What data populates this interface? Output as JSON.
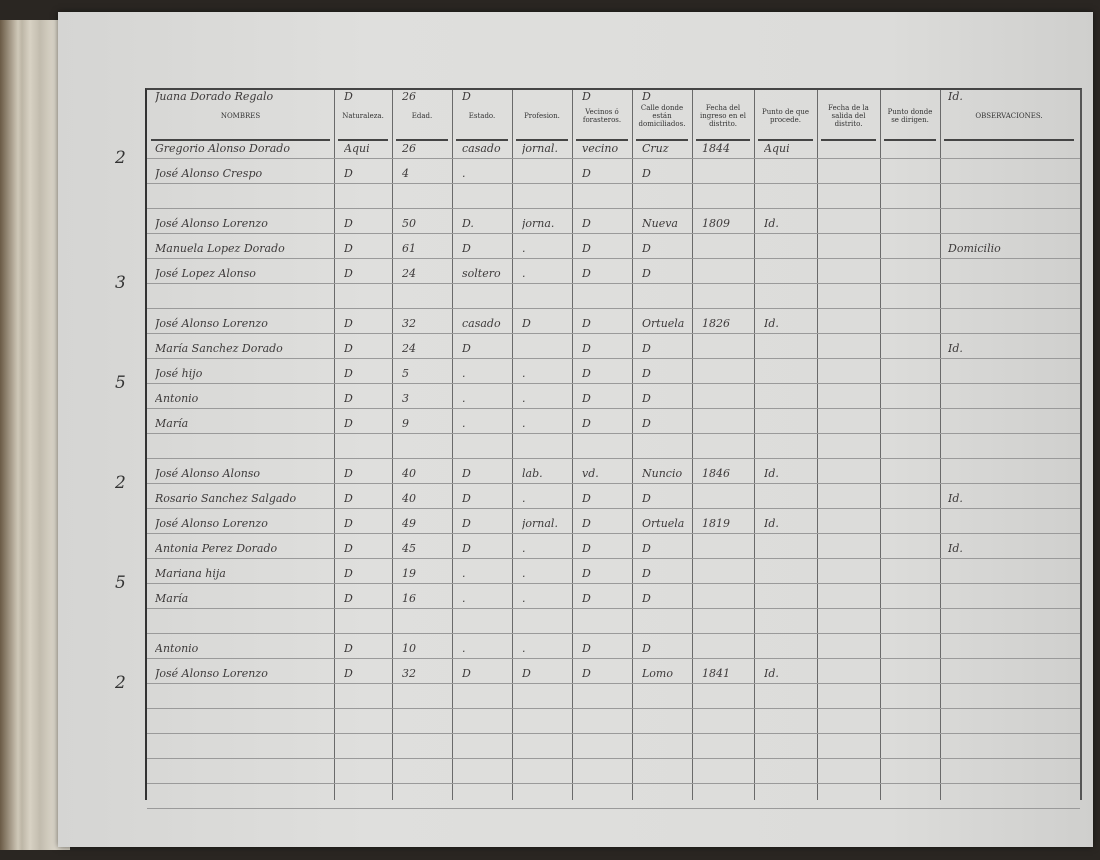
{
  "headers": [
    "NOMBRES",
    "Naturaleza.",
    "Edad.",
    "Estado.",
    "Profesion.",
    "Vecinos ó forasteros.",
    "Calle donde están domiciliados.",
    "Fecha del ingreso en el distrito.",
    "Punto de que procede.",
    "Fecha de la salida del distrito.",
    "Punto donde se dirigen.",
    "OBSERVACIONES."
  ],
  "groups": [
    {
      "row": 0,
      "count": "2"
    },
    {
      "row": 4,
      "count": "3"
    },
    {
      "row": 7,
      "count": "5"
    },
    {
      "row": 10,
      "count": "2"
    },
    {
      "row": 14,
      "count": "5"
    },
    {
      "row": 17,
      "count": "2"
    }
  ],
  "rows": [
    [
      "Gregorio Alonso Dorado",
      "Aqui",
      "26",
      "casado",
      "jornal.",
      "vecino",
      "Cruz",
      "1844",
      "Aqui",
      "",
      "",
      ""
    ],
    [
      "José Alonso Crespo",
      "D",
      "4",
      ".",
      "",
      "D",
      "D",
      "",
      "",
      "",
      "",
      ""
    ],
    [
      "José Alonso Lorenzo",
      "D",
      "50",
      "D.",
      "jorna.",
      "D",
      "Nueva",
      "1809",
      "Id.",
      "",
      "",
      ""
    ],
    [
      "Manuela Lopez Dorado",
      "D",
      "61",
      "D",
      ".",
      "D",
      "D",
      "",
      "",
      "",
      "",
      "Domicilio"
    ],
    [
      "José Lopez Alonso",
      "D",
      "24",
      "soltero",
      ".",
      "D",
      "D",
      "",
      "",
      "",
      "",
      ""
    ],
    [
      "José Alonso Lorenzo",
      "D",
      "32",
      "casado",
      "D",
      "D",
      "Ortuela",
      "1826",
      "Id.",
      "",
      "",
      ""
    ],
    [
      "María Sanchez Dorado",
      "D",
      "24",
      "D",
      "",
      "D",
      "D",
      "",
      "",
      "",
      "",
      "Id."
    ],
    [
      "José hijo",
      "D",
      "5",
      ".",
      ".",
      "D",
      "D",
      "",
      "",
      "",
      "",
      ""
    ],
    [
      "Antonio",
      "D",
      "3",
      ".",
      ".",
      "D",
      "D",
      "",
      "",
      "",
      "",
      ""
    ],
    [
      "María",
      "D",
      "9",
      ".",
      ".",
      "D",
      "D",
      "",
      "",
      "",
      "",
      ""
    ],
    [
      "José Alonso Alonso",
      "D",
      "40",
      "D",
      "lab.",
      "vd.",
      "Nuncio",
      "1846",
      "Id.",
      "",
      "",
      ""
    ],
    [
      "Rosario Sanchez Salgado",
      "D",
      "40",
      "D",
      ".",
      "D",
      "D",
      "",
      "",
      "",
      "",
      "Id."
    ],
    [
      "José Alonso Lorenzo",
      "D",
      "49",
      "D",
      "jornal.",
      "D",
      "Ortuela",
      "1819",
      "Id.",
      "",
      "",
      ""
    ],
    [
      "Antonia Perez Dorado",
      "D",
      "45",
      "D",
      ".",
      "D",
      "D",
      "",
      "",
      "",
      "",
      "Id."
    ],
    [
      "Mariana hija",
      "D",
      "19",
      ".",
      ".",
      "D",
      "D",
      "",
      "",
      "",
      "",
      ""
    ],
    [
      "María",
      "D",
      "16",
      ".",
      ".",
      "D",
      "D",
      "",
      "",
      "",
      "",
      ""
    ],
    [
      "Antonio",
      "D",
      "10",
      ".",
      ".",
      "D",
      "D",
      "",
      "",
      "",
      "",
      ""
    ],
    [
      "José Alonso Lorenzo",
      "D",
      "32",
      "D",
      "D",
      "D",
      "Lomo",
      "1841",
      "Id.",
      "",
      "",
      ""
    ],
    [
      "Juana Dorado Regalo",
      "D",
      "26",
      "D",
      "",
      "D",
      "D",
      "",
      "",
      "",
      "",
      "Id."
    ]
  ],
  "row_lines": [
    0,
    1,
    3,
    4,
    5,
    7,
    8,
    9,
    10,
    11,
    13,
    14,
    15,
    16,
    17,
    18,
    20,
    21
  ]
}
